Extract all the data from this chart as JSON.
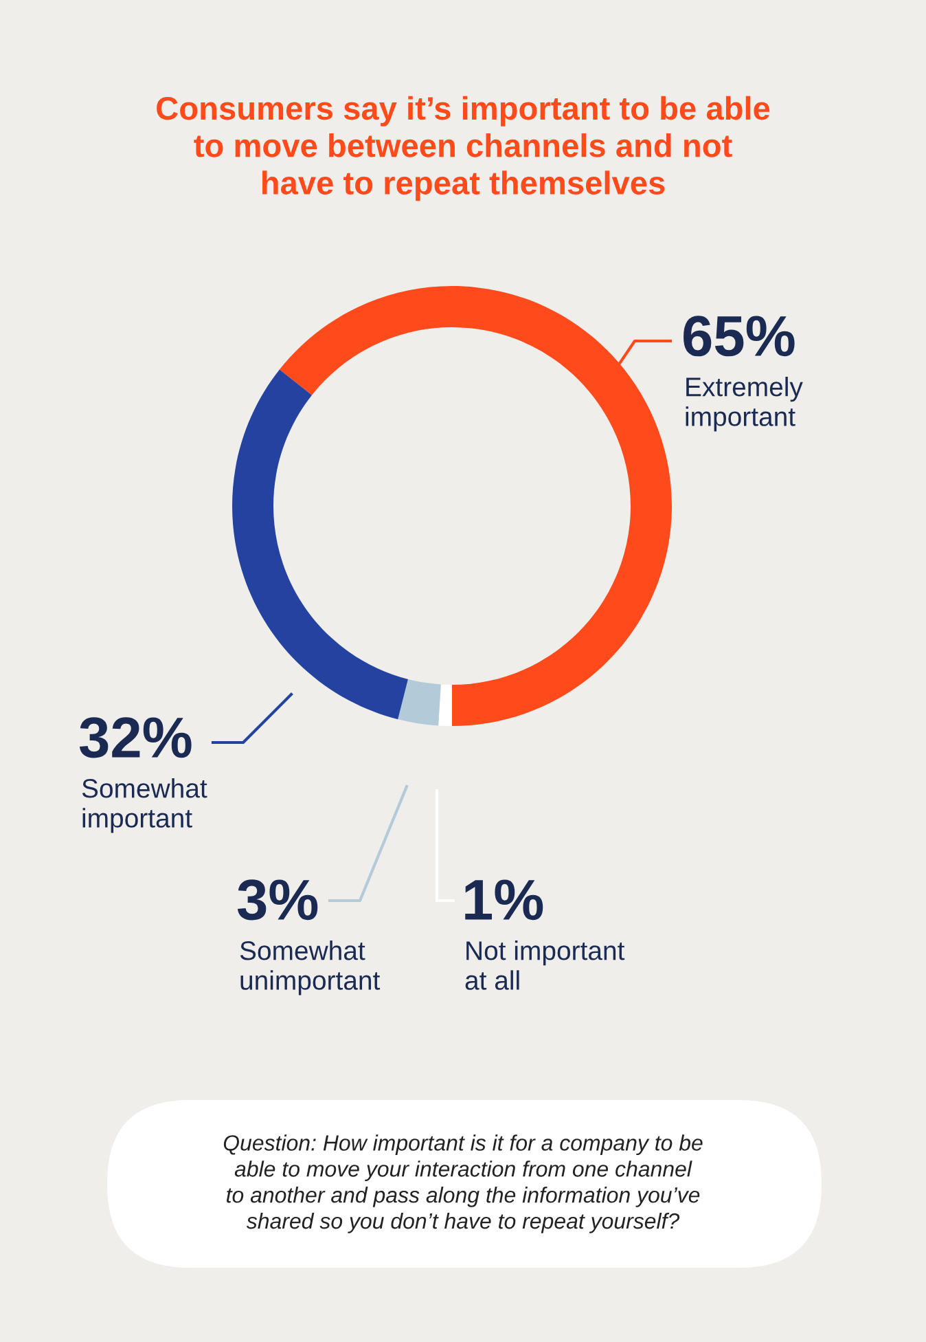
{
  "chart_data": {
    "type": "donut",
    "title": "Consumers say it’s important to be able\nto move between channels and not\nhave to repeat themselves",
    "categories": [
      "Extremely\nimportant",
      "Not important\nat all",
      "Somewhat\nunimportant",
      "Somewhat\nimportant"
    ],
    "values": [
      65,
      1,
      3,
      32
    ],
    "value_labels": [
      "65%",
      "1%",
      "3%",
      "32%"
    ],
    "colors": [
      "#ff4a1c",
      "#ffffff",
      "#b3cad9",
      "#2443a0"
    ],
    "legend": false,
    "annotations": [
      "Question: How important is it for a company to be\nable to move your interaction from one channel\nto another and pass along the information you’ve\nshared so you don’t have to repeat yourself?"
    ]
  }
}
